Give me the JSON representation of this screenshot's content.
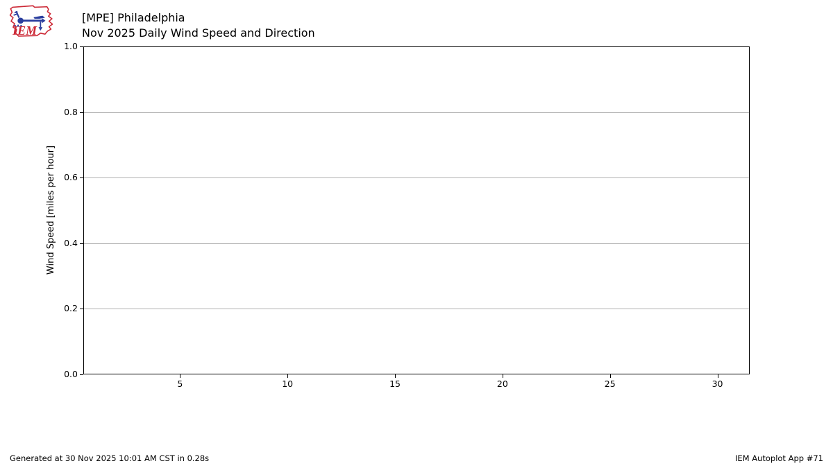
{
  "colors": {
    "grid": "#b0b0b0",
    "axis": "#000000",
    "text": "#000000",
    "logo_red": "#cc2936",
    "logo_blue": "#2a3e9e"
  },
  "header": {
    "logo_text": "IEM",
    "title_line1": "[MPE] Philadelphia",
    "title_line2": "Nov 2025 Daily Wind Speed and Direction"
  },
  "chart_data": {
    "type": "line",
    "title": "[MPE] Philadelphia",
    "subtitle": "Nov 2025 Daily Wind Speed and Direction",
    "xlabel": "",
    "ylabel": "Wind Speed [miles per hour]",
    "x_ticks": [
      5,
      10,
      15,
      20,
      25,
      30
    ],
    "y_tick_labels": [
      "0.0",
      "0.2",
      "0.4",
      "0.6",
      "0.8",
      "1.0"
    ],
    "xlim": [
      0.5,
      31.5
    ],
    "ylim": [
      0.0,
      1.0
    ],
    "grid": "horizontal",
    "legend_position": "none",
    "series": []
  },
  "footer": {
    "generated_text": "Generated at 30 Nov 2025 10:01 AM CST in 0.28s",
    "app_text": "IEM Autoplot App #71"
  }
}
